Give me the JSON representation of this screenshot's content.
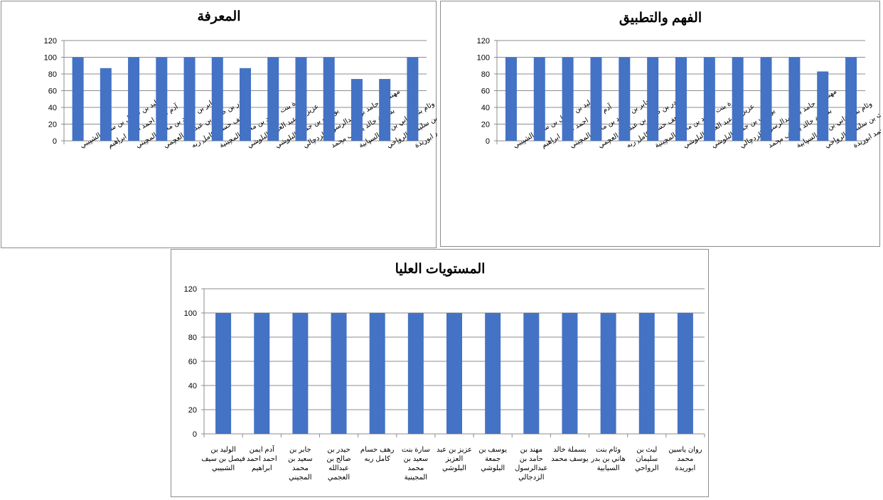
{
  "chart_data": [
    {
      "type": "bar",
      "title": "المعرفة",
      "categories": [
        "الوليد بن فيصل بن سيف الشبيبي",
        "آدم ايمن احمد احمد ابراهيم",
        "جابر بن سعيد بن محمد المجيني",
        "حيدر بن صالح بن عبدالله العجمي",
        "رهف حسام كامل ربه",
        "سارة بنت سعيد بن محمد المجينية",
        "عزيز بن عبد العزيز البلوشي",
        "يوسف بن جمعة البلوشي",
        "مهند بن حامد بن عبدالرسول الزدجالي",
        "بسملة خالد يوسف محمد",
        "وئام بنت هاني بن بدر السيابية",
        "ليث بن سليمان الرواحي",
        "روان ياسين محمد ابوريدة"
      ],
      "values": [
        100,
        87,
        100,
        100,
        100,
        100,
        87,
        100,
        100,
        100,
        74,
        74,
        100
      ],
      "yticks": [
        "0",
        "20",
        "40",
        "60",
        "80",
        "100",
        "120"
      ],
      "ylim": [
        0,
        120
      ],
      "grid": true,
      "legend": "none",
      "color": "#4472c4"
    },
    {
      "type": "bar",
      "title": "الفهم والتطبيق",
      "categories": [
        "الوليد بن فيصل بن سيف الشبيبي",
        "آدم ايمن احمد احمد ابراهيم",
        "جابر بن سعيد بن محمد المجيني",
        "حيدر بن صالح بن عبدالله العجمي",
        "رهف حسام كامل ربه",
        "سارة بنت سعيد بن محمد المجينية",
        "عزيز بن عبد العزيز البلوشي",
        "يوسف بن جمعة البلوشي",
        "مهند بن حامد بن عبدالرسول الزدجالي",
        "بسملة خالد يوسف محمد",
        "وئام بنت هاني بن بدر السيابية",
        "ليث بن سليمان الرواحي",
        "روان ياسين محمد ابوريدة"
      ],
      "values": [
        100,
        100,
        100,
        100,
        100,
        100,
        100,
        100,
        100,
        100,
        100,
        83,
        100
      ],
      "yticks": [
        "0",
        "20",
        "40",
        "60",
        "80",
        "100",
        "120"
      ],
      "ylim": [
        0,
        120
      ],
      "grid": true,
      "legend": "none",
      "color": "#4472c4"
    },
    {
      "type": "bar",
      "title": "المستويات العليا",
      "categories": [
        "الوليد بن فيصل بن سيف الشبيبي",
        "آدم ايمن احمد احمد ابراهيم",
        "جابر بن سعيد بن محمد المجيني",
        "حيدر بن صالح بن عبدالله العجمي",
        "رهف حسام كامل ربه",
        "سارة بنت سعيد بن محمد المجينية",
        "عزيز بن عبد العزيز البلوشي",
        "يوسف بن جمعة البلوشي",
        "مهند بن حامد بن عبدالرسول الزدجالي",
        "بسملة خالد يوسف محمد",
        "وئام بنت هاني بن بدر السيابية",
        "ليث بن سليمان الرواحي",
        "روان ياسين محمد ابوريدة"
      ],
      "values": [
        100,
        100,
        100,
        100,
        100,
        100,
        100,
        100,
        100,
        100,
        100,
        100,
        100
      ],
      "yticks": [
        "0",
        "20",
        "40",
        "60",
        "80",
        "100",
        "120"
      ],
      "ylim": [
        0,
        120
      ],
      "grid": true,
      "legend": "none",
      "color": "#4472c4"
    }
  ]
}
